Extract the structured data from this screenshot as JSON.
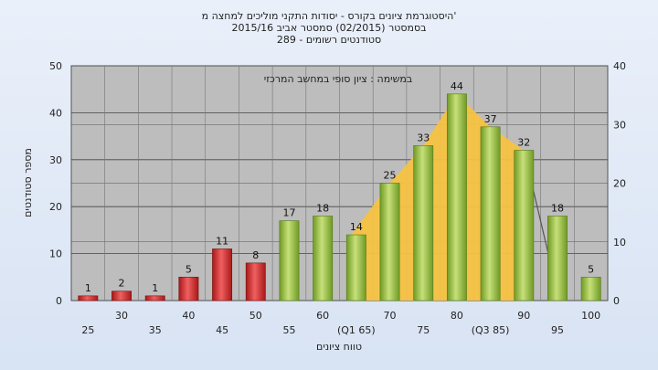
{
  "chart_data": {
    "type": "bar",
    "title_lines": [
      "היסטוגרמת ציונים בקורס - יסודות התקני מוליכים למחצה מ'",
      "בסמסטר  (02/2015)  סמסטר אביב 2015/16",
      "סטודנטים רשומים - 289"
    ],
    "annotation": "במשימה : ציון סופי במחשב המרכזי",
    "xlabel": "טווח ציונים",
    "ylabel": "מספר סטודנטים",
    "ylim": [
      0,
      50
    ],
    "y2lim": [
      0,
      40
    ],
    "y_ticks": [
      0,
      10,
      20,
      30,
      40,
      50
    ],
    "y2_ticks": [
      0,
      10,
      20,
      30,
      40
    ],
    "categories": [
      "25",
      "30",
      "35",
      "40",
      "45",
      "50",
      "55",
      "60",
      "(Q1 65)",
      "70",
      "75",
      "80",
      "(Q3 85)",
      "90",
      "95",
      "100"
    ],
    "values": [
      1,
      2,
      1,
      5,
      11,
      8,
      17,
      18,
      14,
      25,
      33,
      44,
      37,
      32,
      18,
      5
    ],
    "fail_threshold_index": 6,
    "area_range": [
      8,
      13
    ],
    "colors": {
      "fail": "#d42a2a",
      "pass": "#8fbd3a",
      "area": "#f5c242",
      "plot_bg": "#bdbdbd"
    },
    "grid": true
  }
}
